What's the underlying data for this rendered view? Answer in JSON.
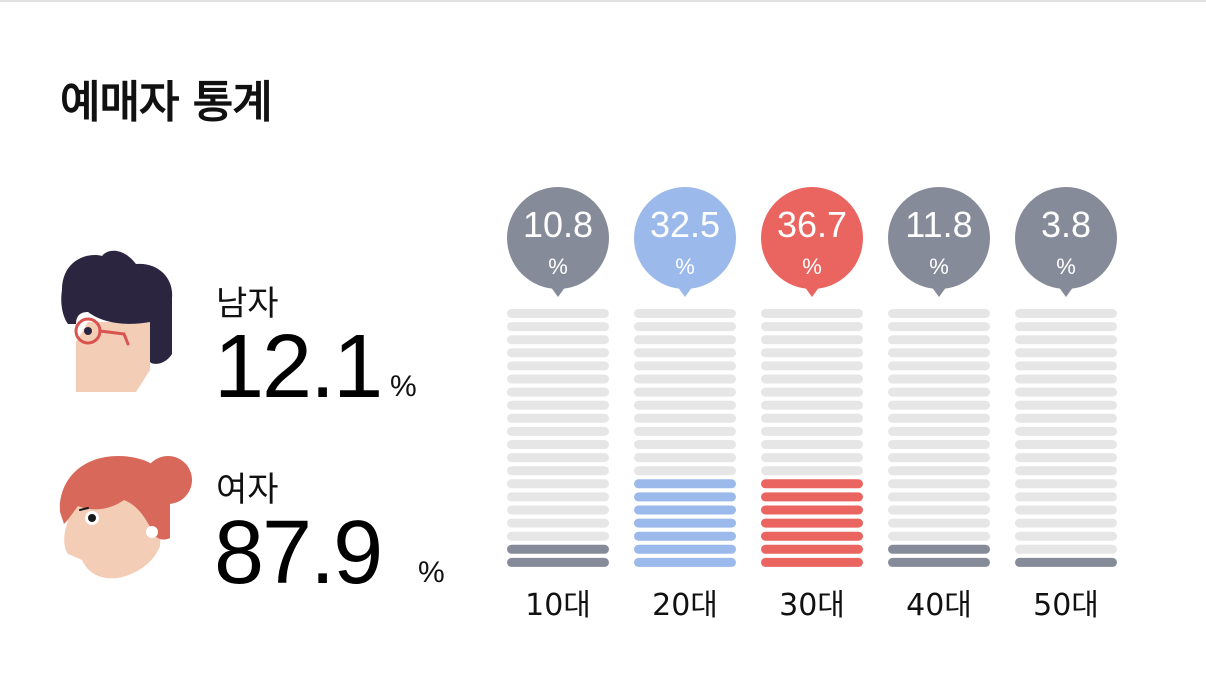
{
  "title": "예매자 통계",
  "gender": {
    "male": {
      "label": "남자",
      "value": "12.1",
      "unit": "%"
    },
    "female": {
      "label": "여자",
      "value": "87.9",
      "unit": "%"
    }
  },
  "colors": {
    "inactive": "#868b9a",
    "blue": "#9bb9ea",
    "red": "#ea6460",
    "empty": "#e6e6e6",
    "male_hair": "#2c2540",
    "female_hair": "#d8685a",
    "skin": "#f3cdb6"
  },
  "chart_data": {
    "type": "bar",
    "categories": [
      "10대",
      "20대",
      "30대",
      "40대",
      "50대"
    ],
    "values": [
      10.8,
      32.5,
      36.7,
      11.8,
      3.8
    ],
    "bubble_unit": "%",
    "highlight_colors": [
      "#868b9a",
      "#9bb9ea",
      "#ea6460",
      "#868b9a",
      "#868b9a"
    ],
    "segments_total": 20,
    "filled_segments": [
      2,
      7,
      7,
      2,
      1
    ]
  }
}
